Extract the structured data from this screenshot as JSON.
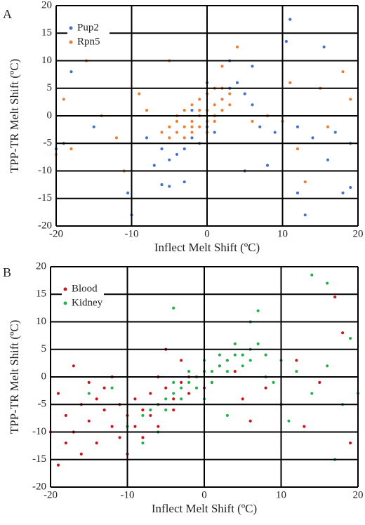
{
  "chart_data": [
    {
      "type": "scatter",
      "label": "A",
      "xlabel": "Inflect Melt Shift (ºC)",
      "ylabel": "TPP-TR Melt Shift (ºC)",
      "xlim": [
        -20,
        20
      ],
      "ylim": [
        -20,
        20
      ],
      "xticks": [
        -20,
        -10,
        0,
        10,
        20
      ],
      "yticks": [
        -20,
        -15,
        -10,
        -5,
        0,
        5,
        10,
        15,
        20
      ],
      "grid": true,
      "legend": "upper left",
      "series": [
        {
          "name": "Pup2",
          "color": "#4472c4",
          "x": [
            -19,
            -18,
            -10,
            -10.5,
            -6,
            -5,
            -3,
            11,
            10.5,
            15.5,
            13,
            18,
            19,
            12,
            16,
            5,
            8,
            6,
            3,
            -15,
            -20,
            -4,
            -3,
            -2,
            0,
            1,
            2,
            3,
            4,
            -1,
            -5,
            -6,
            5,
            6,
            8,
            7,
            9,
            12,
            14,
            17,
            19,
            -8,
            -7,
            0,
            1,
            -2
          ],
          "y": [
            -5,
            8,
            -18,
            -14,
            -12.5,
            -12.8,
            -12,
            17.5,
            13.5,
            12.5,
            -18,
            -14,
            -13,
            -14,
            -8,
            -10,
            -9,
            9,
            10,
            -2,
            -6,
            -7,
            -6,
            -4,
            -2,
            0,
            3,
            5,
            6,
            -5,
            -8,
            -6,
            4,
            2,
            0,
            -2,
            -3,
            -2,
            -4,
            -3,
            -5,
            -4,
            -9,
            6,
            -3,
            1
          ]
        },
        {
          "name": "Rpn5",
          "color": "#ed7d31",
          "x": [
            -19,
            -16,
            -18,
            -12,
            -14,
            -8,
            -9,
            -5,
            2,
            4,
            12,
            15,
            18,
            19,
            16,
            10,
            8,
            6,
            -20,
            -11,
            13,
            11,
            -5,
            -4,
            -3,
            -2,
            -1,
            0,
            1,
            2,
            3,
            -4,
            -3,
            -2,
            -1,
            0,
            1,
            -3,
            -2,
            -1,
            0,
            1,
            2,
            -4,
            -5,
            -6,
            3,
            2,
            0,
            -1,
            1,
            -2
          ],
          "y": [
            3,
            10,
            -6,
            -4,
            0,
            1,
            4,
            10,
            9,
            12.5,
            -6,
            5,
            8,
            3,
            -2,
            -1,
            0,
            -1,
            -7,
            -10,
            -12,
            6,
            -4,
            -3,
            -2,
            -1,
            0,
            1,
            2,
            3,
            4,
            -1,
            1,
            2,
            3,
            4,
            5,
            -4,
            -3,
            -2,
            -1,
            0,
            1,
            0,
            -2,
            -3,
            2,
            5,
            -3,
            1,
            -1,
            -2
          ]
        }
      ]
    },
    {
      "type": "scatter",
      "label": "B",
      "xlabel": "Inflect Melt Shift (ºC)",
      "ylabel": "TPP-TR Melt Shift (ºC)",
      "xlim": [
        -20,
        20
      ],
      "ylim": [
        -20,
        20
      ],
      "xticks": [
        -20,
        -10,
        0,
        10,
        20
      ],
      "yticks": [
        -20,
        -15,
        -10,
        -5,
        0,
        5,
        10,
        15,
        20
      ],
      "grid": true,
      "legend": "upper left",
      "series": [
        {
          "name": "Blood",
          "color": "#c8161d",
          "x": [
            -19,
            -18,
            -17,
            -16,
            -15,
            -14,
            -13,
            -12,
            -11,
            -10,
            -9,
            -8,
            -7,
            -6,
            -5,
            -4,
            -3,
            -2,
            -1,
            0,
            1,
            2,
            3,
            -19,
            -17,
            -15,
            -12,
            -8,
            -6,
            -5,
            -3,
            5,
            8,
            12,
            15,
            18,
            19,
            17,
            -18,
            -10,
            -14,
            -11,
            -20,
            -9,
            -7,
            -4,
            -2,
            0,
            4,
            6,
            10,
            13,
            -16,
            -13,
            -6
          ],
          "y": [
            -16,
            -12,
            -10,
            -14,
            -8,
            -12,
            -6,
            -9,
            -5,
            -7,
            -4,
            -6,
            -3,
            -5,
            -2,
            -4,
            -1,
            -3,
            0,
            1,
            -1,
            2,
            3,
            -3,
            2,
            -1,
            0,
            -11,
            -9,
            5,
            3,
            -4,
            -2,
            3,
            -1,
            8,
            -12,
            14.5,
            -7,
            -14,
            -4,
            -11,
            -10,
            -9,
            -7,
            -6,
            0,
            -2,
            1,
            -8,
            -5,
            -9,
            -5,
            -2,
            0
          ]
        },
        {
          "name": "Kidney",
          "color": "#22b14c",
          "x": [
            -8,
            -7,
            -6,
            -5,
            -4,
            -3,
            -2,
            -1,
            0,
            1,
            2,
            3,
            4,
            5,
            6,
            7,
            -5,
            -3,
            -1,
            1,
            3,
            5,
            -4,
            -2,
            0,
            2,
            4,
            6,
            8,
            10,
            12,
            14,
            16,
            18,
            19,
            14,
            16,
            6,
            7,
            -4,
            -8,
            -12,
            -15,
            9,
            11,
            17,
            -10,
            -6,
            3,
            0,
            8,
            20
          ],
          "y": [
            -7,
            -6,
            -5,
            -4,
            -3,
            -2,
            -1,
            0,
            1,
            1,
            2,
            3,
            4,
            4,
            5,
            6,
            -6,
            -4,
            -2,
            -1,
            1,
            2,
            -1,
            1,
            3,
            4,
            6,
            3,
            4,
            3,
            1,
            -3,
            2,
            -5,
            7,
            18.5,
            17,
            10,
            12,
            12.5,
            -12,
            -2,
            -3,
            -1,
            -8,
            -15,
            -9,
            -10,
            -7,
            -4,
            0,
            -3
          ]
        }
      ]
    }
  ]
}
